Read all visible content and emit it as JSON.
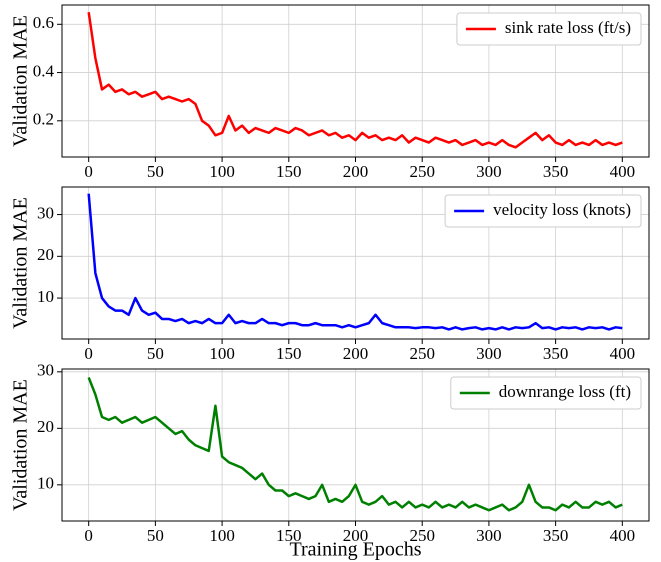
{
  "chart_data": [
    {
      "type": "line",
      "y_label": "Validation MAE",
      "x": [
        0,
        5,
        10,
        15,
        20,
        25,
        30,
        35,
        40,
        45,
        50,
        55,
        60,
        65,
        70,
        75,
        80,
        85,
        90,
        95,
        100,
        105,
        110,
        115,
        120,
        125,
        130,
        135,
        140,
        145,
        150,
        155,
        160,
        165,
        170,
        175,
        180,
        185,
        190,
        195,
        200,
        205,
        210,
        215,
        220,
        225,
        230,
        235,
        240,
        245,
        250,
        255,
        260,
        265,
        270,
        275,
        280,
        285,
        290,
        295,
        300,
        305,
        310,
        315,
        320,
        325,
        330,
        335,
        340,
        345,
        350,
        355,
        360,
        365,
        370,
        375,
        380,
        385,
        390,
        395,
        400
      ],
      "series": [
        {
          "name": "sink rate loss (ft/s)",
          "color": "#ff0000",
          "values": [
            0.65,
            0.46,
            0.33,
            0.35,
            0.32,
            0.33,
            0.31,
            0.32,
            0.3,
            0.31,
            0.32,
            0.29,
            0.3,
            0.29,
            0.28,
            0.29,
            0.27,
            0.2,
            0.18,
            0.14,
            0.15,
            0.22,
            0.16,
            0.18,
            0.15,
            0.17,
            0.16,
            0.15,
            0.17,
            0.16,
            0.15,
            0.17,
            0.16,
            0.14,
            0.15,
            0.16,
            0.14,
            0.15,
            0.13,
            0.14,
            0.12,
            0.15,
            0.13,
            0.14,
            0.12,
            0.13,
            0.12,
            0.14,
            0.11,
            0.13,
            0.12,
            0.11,
            0.13,
            0.12,
            0.11,
            0.12,
            0.1,
            0.11,
            0.12,
            0.1,
            0.11,
            0.1,
            0.12,
            0.1,
            0.09,
            0.11,
            0.13,
            0.15,
            0.12,
            0.14,
            0.11,
            0.1,
            0.12,
            0.1,
            0.11,
            0.1,
            0.12,
            0.1,
            0.11,
            0.1,
            0.11
          ]
        }
      ],
      "xlim": [
        -20,
        420
      ],
      "xticks": [
        0,
        50,
        100,
        150,
        200,
        250,
        300,
        350,
        400
      ],
      "ylim": [
        0.05,
        0.68
      ],
      "yticks": [
        0.2,
        0.4,
        0.6
      ],
      "grid": true,
      "legend": "upper right"
    },
    {
      "type": "line",
      "y_label": "Validation MAE",
      "x": [
        0,
        5,
        10,
        15,
        20,
        25,
        30,
        35,
        40,
        45,
        50,
        55,
        60,
        65,
        70,
        75,
        80,
        85,
        90,
        95,
        100,
        105,
        110,
        115,
        120,
        125,
        130,
        135,
        140,
        145,
        150,
        155,
        160,
        165,
        170,
        175,
        180,
        185,
        190,
        195,
        200,
        205,
        210,
        215,
        220,
        225,
        230,
        235,
        240,
        245,
        250,
        255,
        260,
        265,
        270,
        275,
        280,
        285,
        290,
        295,
        300,
        305,
        310,
        315,
        320,
        325,
        330,
        335,
        340,
        345,
        350,
        355,
        360,
        365,
        370,
        375,
        380,
        385,
        390,
        395,
        400
      ],
      "series": [
        {
          "name": "velocity loss (knots)",
          "color": "#0000ff",
          "values": [
            35,
            16,
            10,
            8,
            7,
            7,
            6,
            10,
            7,
            6,
            6.5,
            5,
            5,
            4.5,
            5,
            4,
            4.5,
            4,
            5,
            4,
            4,
            6,
            4,
            4.5,
            4,
            4,
            5,
            4,
            4,
            3.5,
            4,
            4,
            3.5,
            3.5,
            4,
            3.5,
            3.5,
            3.5,
            3,
            3.5,
            3,
            3.5,
            4,
            6,
            4,
            3.5,
            3,
            3,
            3,
            2.8,
            3,
            3,
            2.8,
            3,
            2.5,
            3,
            2.5,
            2.8,
            3,
            2.5,
            2.8,
            2.5,
            3,
            2.5,
            3,
            2.8,
            3,
            4,
            2.8,
            3,
            2.5,
            3,
            2.8,
            3,
            2.5,
            3,
            2.8,
            3,
            2.5,
            3,
            2.8
          ]
        }
      ],
      "xlim": [
        -20,
        420
      ],
      "xticks": [
        0,
        50,
        100,
        150,
        200,
        250,
        300,
        350,
        400
      ],
      "ylim": [
        0.2,
        36.6
      ],
      "yticks": [
        10,
        20,
        30
      ],
      "grid": true,
      "legend": "upper right"
    },
    {
      "type": "line",
      "y_label": "Validation MAE",
      "x_label": "Training Epochs",
      "x": [
        0,
        5,
        10,
        15,
        20,
        25,
        30,
        35,
        40,
        45,
        50,
        55,
        60,
        65,
        70,
        75,
        80,
        85,
        90,
        95,
        100,
        105,
        110,
        115,
        120,
        125,
        130,
        135,
        140,
        145,
        150,
        155,
        160,
        165,
        170,
        175,
        180,
        185,
        190,
        195,
        200,
        205,
        210,
        215,
        220,
        225,
        230,
        235,
        240,
        245,
        250,
        255,
        260,
        265,
        270,
        275,
        280,
        285,
        290,
        295,
        300,
        305,
        310,
        315,
        320,
        325,
        330,
        335,
        340,
        345,
        350,
        355,
        360,
        365,
        370,
        375,
        380,
        385,
        390,
        395,
        400
      ],
      "series": [
        {
          "name": "downrange loss (ft)",
          "color": "#008000",
          "values": [
            29,
            26,
            22,
            21.5,
            22,
            21,
            21.5,
            22,
            21,
            21.5,
            22,
            21,
            20,
            19,
            19.5,
            18,
            17,
            16.5,
            16,
            24,
            15,
            14,
            13.5,
            13,
            12,
            11,
            12,
            10,
            9,
            9,
            8,
            8.5,
            8,
            7.5,
            8,
            10,
            7,
            7.5,
            7,
            8,
            10,
            7,
            6.5,
            7,
            8,
            6.5,
            7,
            6,
            7,
            6,
            6.5,
            6,
            7,
            6,
            6.5,
            6,
            7,
            6,
            6.5,
            6,
            5.5,
            6,
            6.5,
            5.5,
            6,
            7,
            10,
            7,
            6,
            6,
            5.5,
            6.5,
            6,
            7,
            6,
            6,
            7,
            6.5,
            7,
            6,
            6.5
          ]
        }
      ],
      "xlim": [
        -20,
        420
      ],
      "xticks": [
        0,
        50,
        100,
        150,
        200,
        250,
        300,
        350,
        400
      ],
      "ylim": [
        3.6,
        30.5
      ],
      "yticks": [
        10,
        20,
        30
      ],
      "grid": true,
      "legend": "upper right"
    }
  ]
}
